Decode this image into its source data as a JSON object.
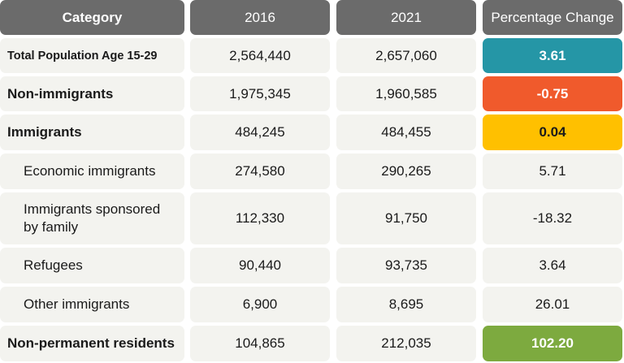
{
  "chart_data": {
    "type": "table",
    "columns": [
      "Category",
      "2016",
      "2021",
      "Percentage Change"
    ],
    "rows": [
      {
        "category": "Total Population Age 15-29",
        "y2016": "2,564,440",
        "y2021": "2,657,060",
        "change": "3.61",
        "level": "main",
        "highlight": "#2596a6"
      },
      {
        "category": "Non-immigrants",
        "y2016": "1,975,345",
        "y2021": "1,960,585",
        "change": "-0.75",
        "level": "main",
        "highlight": "#f05a2c"
      },
      {
        "category": "Immigrants",
        "y2016": "484,245",
        "y2021": "484,455",
        "change": "0.04",
        "level": "main",
        "highlight": "#ffc000"
      },
      {
        "category": "Economic immigrants",
        "y2016": "274,580",
        "y2021": "290,265",
        "change": "5.71",
        "level": "sub",
        "highlight": ""
      },
      {
        "category": "Immigrants sponsored by family",
        "y2016": "112,330",
        "y2021": "91,750",
        "change": "-18.32",
        "level": "sub",
        "highlight": ""
      },
      {
        "category": "Refugees",
        "y2016": "90,440",
        "y2021": "93,735",
        "change": "3.64",
        "level": "sub",
        "highlight": ""
      },
      {
        "category": "Other immigrants",
        "y2016": "6,900",
        "y2021": "8,695",
        "change": "26.01",
        "level": "sub",
        "highlight": ""
      },
      {
        "category": "Non-permanent residents",
        "y2016": "104,865",
        "y2021": "212,035",
        "change": "102.20",
        "level": "main",
        "highlight": "#7daa3f"
      }
    ]
  }
}
